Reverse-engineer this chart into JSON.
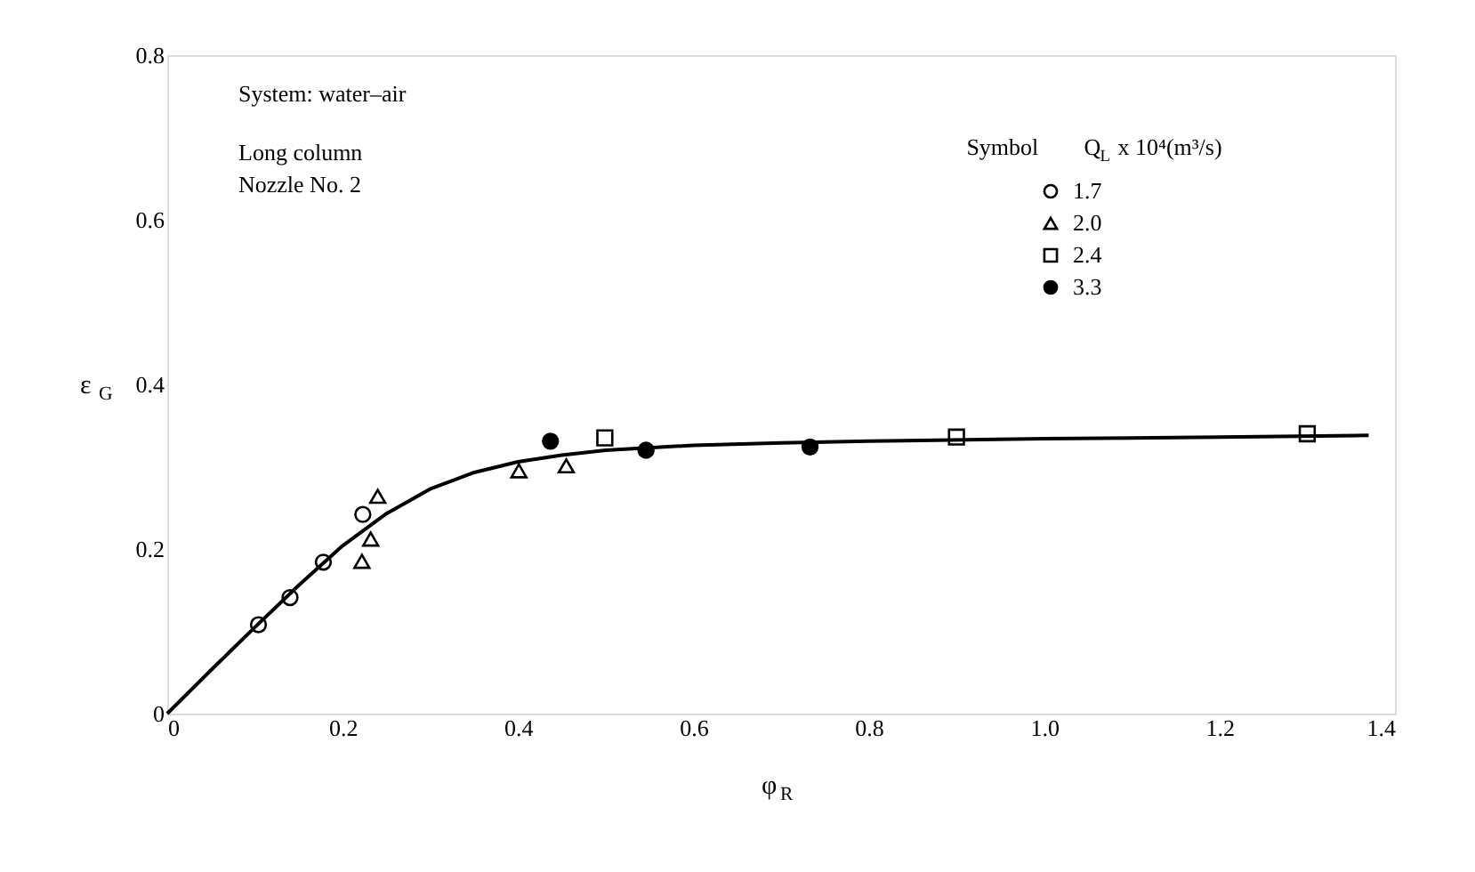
{
  "chart_data": {
    "type": "scatter",
    "xlabel": "φ$_{R}$",
    "ylabel": "ε$_{G}$",
    "legend_title": [
      "Symbol",
      "Q$_{L}$ x 10⁴(m³/s)"
    ],
    "legend": "top right",
    "grid": false,
    "annotations": [
      "System: water–air",
      "Long column",
      "Nozzle No. 2"
    ],
    "xlim": [
      0,
      1.4
    ],
    "xticks": [
      0,
      0.2,
      0.4,
      0.6,
      0.8,
      {
        "value": 1,
        "label": "1.0"
      },
      1.2,
      1.4
    ],
    "ylim": [
      0,
      0.8
    ],
    "yticks": [
      0,
      0.2,
      0.4,
      0.6,
      0.8
    ],
    "series": [
      {
        "name": "1.7",
        "color": "#000000",
        "marker": "circle",
        "x": [
          0.104,
          0.14,
          0.178,
          0.223
        ],
        "values": [
          0.108,
          0.141,
          0.184,
          0.242
        ]
      },
      {
        "name": "2.0",
        "color": "#000000",
        "marker": "triangle",
        "x": [
          0.24,
          0.232,
          0.222,
          0.401,
          0.455
        ],
        "values": [
          0.264,
          0.212,
          0.185,
          0.295,
          0.301
        ]
      },
      {
        "name": "2.4",
        "color": "#000000",
        "marker": "square",
        "x": [
          0.499,
          0.9,
          1.3
        ],
        "values": [
          0.335,
          0.336,
          0.34
        ]
      },
      {
        "name": "3.3",
        "color": "#000000",
        "marker": "circle",
        "x": [
          0.437,
          0.546,
          0.733
        ],
        "values": [
          0.331,
          0.32,
          0.324
        ]
      },
      {
        "type": "line",
        "color": "#000000",
        "marker": "none",
        "line_style": "solid",
        "x": [
          0,
          0.05,
          0.1,
          0.15,
          0.2,
          0.25,
          0.3,
          0.35,
          0.4,
          0.45,
          0.5,
          0.6,
          0.7,
          0.8,
          1.0,
          1.2,
          1.37
        ],
        "values": [
          0,
          0.053,
          0.105,
          0.156,
          0.204,
          0.243,
          0.273,
          0.293,
          0.306,
          0.314,
          0.32,
          0.326,
          0.329,
          0.331,
          0.334,
          0.336,
          0.338
        ]
      }
    ]
  }
}
